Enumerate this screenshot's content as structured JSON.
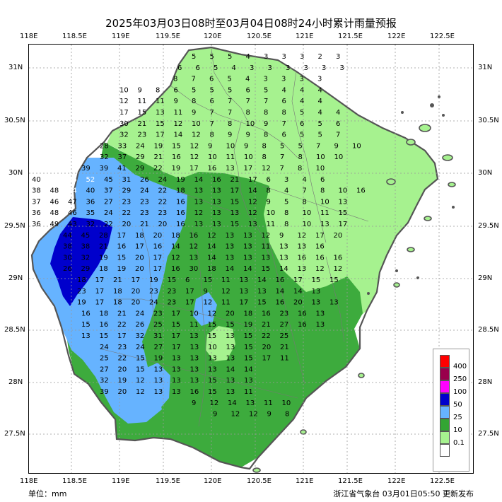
{
  "title": "2025年03月03日08时至03月04日08时24小时累计雨量预报",
  "top_axis": [
    "118E",
    "118.5E",
    "119E",
    "119.5E",
    "120E",
    "120.5E",
    "121E",
    "121.5E",
    "122E",
    "122.5E"
  ],
  "bottom_axis": [
    "118E",
    "118.5E",
    "119E",
    "119.5E",
    "120E",
    "120.5E",
    "121E",
    "121.5E",
    "122E",
    "122.5E"
  ],
  "left_axis": [
    "31N",
    "30.5N",
    "30N",
    "29.5N",
    "29N",
    "28.5N",
    "28N",
    "27.5N"
  ],
  "right_axis": [
    "31N",
    "30.5N",
    "30N",
    "29.5N",
    "29N",
    "28.5N",
    "28N",
    "27.5N"
  ],
  "unit_label": "单位：mm",
  "issuer": "浙江省气象台 03月01日05:50 更新发布",
  "legend": [
    {
      "label": "400",
      "color": "#ff0000"
    },
    {
      "label": "250",
      "color": "#99004c"
    },
    {
      "label": "100",
      "color": "#ff00ff"
    },
    {
      "label": "50",
      "color": "#0000cc"
    },
    {
      "label": "25",
      "color": "#66b3ff"
    },
    {
      "label": "10",
      "color": "#33a533"
    },
    {
      "label": "0.1",
      "color": "#a6f28f"
    },
    {
      "label": "",
      "color": "#ffffff"
    }
  ],
  "colors": {
    "zone_light": "#a6f28f",
    "zone_green": "#3dab3d",
    "zone_blue": "#66b3ff",
    "zone_dark": "#0000cc",
    "grid": "#999999"
  },
  "rain_values": [
    [
      5,
      5,
      5,
      4,
      3,
      3,
      3,
      2,
      3
    ],
    [
      6,
      6,
      5,
      4,
      3,
      3,
      3,
      3,
      3,
      3
    ],
    [
      8,
      7,
      6,
      5,
      4,
      3,
      3,
      3,
      3
    ],
    [
      10,
      9,
      8,
      6,
      5,
      5,
      5,
      6,
      5,
      4,
      4,
      4
    ],
    [
      12,
      11,
      11,
      9,
      8,
      6,
      7,
      7,
      7,
      6,
      4,
      4
    ],
    [
      17,
      15,
      13,
      11,
      9,
      7,
      7,
      8,
      8,
      8,
      5,
      4,
      4
    ],
    [
      30,
      21,
      15,
      12,
      10,
      7,
      8,
      10,
      9,
      7,
      6,
      5,
      6
    ],
    [
      32,
      23,
      17,
      14,
      12,
      8,
      9,
      9,
      8,
      6,
      5,
      5,
      7
    ],
    [
      28,
      33,
      24,
      19,
      15,
      12,
      9,
      10,
      9,
      8,
      5,
      5,
      7,
      9,
      10
    ],
    [
      32,
      37,
      29,
      21,
      16,
      12,
      10,
      11,
      10,
      8,
      7,
      8,
      10,
      10
    ],
    [
      39,
      39,
      41,
      29,
      22,
      19,
      17,
      16,
      13,
      17,
      12,
      7,
      8,
      10
    ],
    [
      40,
      56,
      56,
      52,
      45,
      31,
      26,
      24,
      19,
      14,
      16,
      21,
      17,
      6,
      3,
      4,
      6
    ],
    [
      38,
      48,
      54,
      40,
      37,
      29,
      24,
      22,
      18,
      13,
      13,
      17,
      14,
      8,
      4,
      7,
      8,
      10,
      16
    ],
    [
      37,
      46,
      47,
      36,
      27,
      23,
      23,
      22,
      16,
      13,
      13,
      15,
      12,
      9,
      5,
      8,
      10,
      13
    ],
    [
      36,
      48,
      46,
      35,
      24,
      22,
      23,
      23,
      16,
      12,
      13,
      13,
      12,
      10,
      8,
      10,
      11,
      15
    ],
    [
      36,
      49,
      43,
      32,
      22,
      20,
      21,
      20,
      16,
      13,
      13,
      15,
      13,
      11,
      8,
      10,
      13,
      17
    ],
    [
      44,
      45,
      28,
      17,
      18,
      20,
      18,
      16,
      12,
      13,
      13,
      12,
      9,
      12,
      17,
      20
    ],
    [
      38,
      38,
      21,
      16,
      17,
      16,
      14,
      12,
      14,
      13,
      13,
      11,
      13,
      13,
      16
    ],
    [
      30,
      32,
      19,
      15,
      20,
      17,
      12,
      13,
      14,
      13,
      13,
      13,
      13,
      16,
      16,
      16
    ],
    [
      26,
      29,
      18,
      19,
      20,
      17,
      16,
      30,
      18,
      14,
      14,
      15,
      14,
      13,
      12,
      12
    ],
    [
      18,
      17,
      21,
      17,
      19,
      15,
      6,
      15,
      11,
      13,
      14,
      16,
      17,
      15,
      15
    ],
    [
      23,
      17,
      18,
      20,
      23,
      23,
      17,
      9,
      12,
      13,
      13,
      14,
      14,
      13
    ],
    [
      19,
      17,
      18,
      20,
      24,
      23,
      17,
      12,
      11,
      17,
      15,
      16,
      20,
      13,
      13
    ],
    [
      16,
      18,
      21,
      24,
      23,
      17,
      10,
      12,
      20,
      18,
      16,
      23,
      16,
      13
    ],
    [
      15,
      16,
      22,
      26,
      25,
      15,
      11,
      15,
      15,
      19,
      21,
      27,
      16,
      13
    ],
    [
      13,
      15,
      17,
      32,
      31,
      17,
      13,
      15,
      13,
      15,
      22,
      25
    ],
    [
      24,
      23,
      24,
      27,
      17,
      13,
      10,
      13,
      15,
      20,
      21
    ],
    [
      25,
      22,
      15,
      19,
      13,
      13,
      13,
      13,
      15,
      17,
      11
    ],
    [
      27,
      20,
      15,
      13,
      13,
      13,
      13,
      14,
      14
    ],
    [
      32,
      19,
      12,
      13,
      13,
      13,
      15,
      13,
      13
    ],
    [
      39,
      20,
      12,
      13,
      13,
      16,
      15,
      13,
      11
    ],
    [
      9,
      12,
      14,
      13,
      11,
      10
    ],
    [
      9,
      12,
      12,
      9,
      8
    ]
  ]
}
